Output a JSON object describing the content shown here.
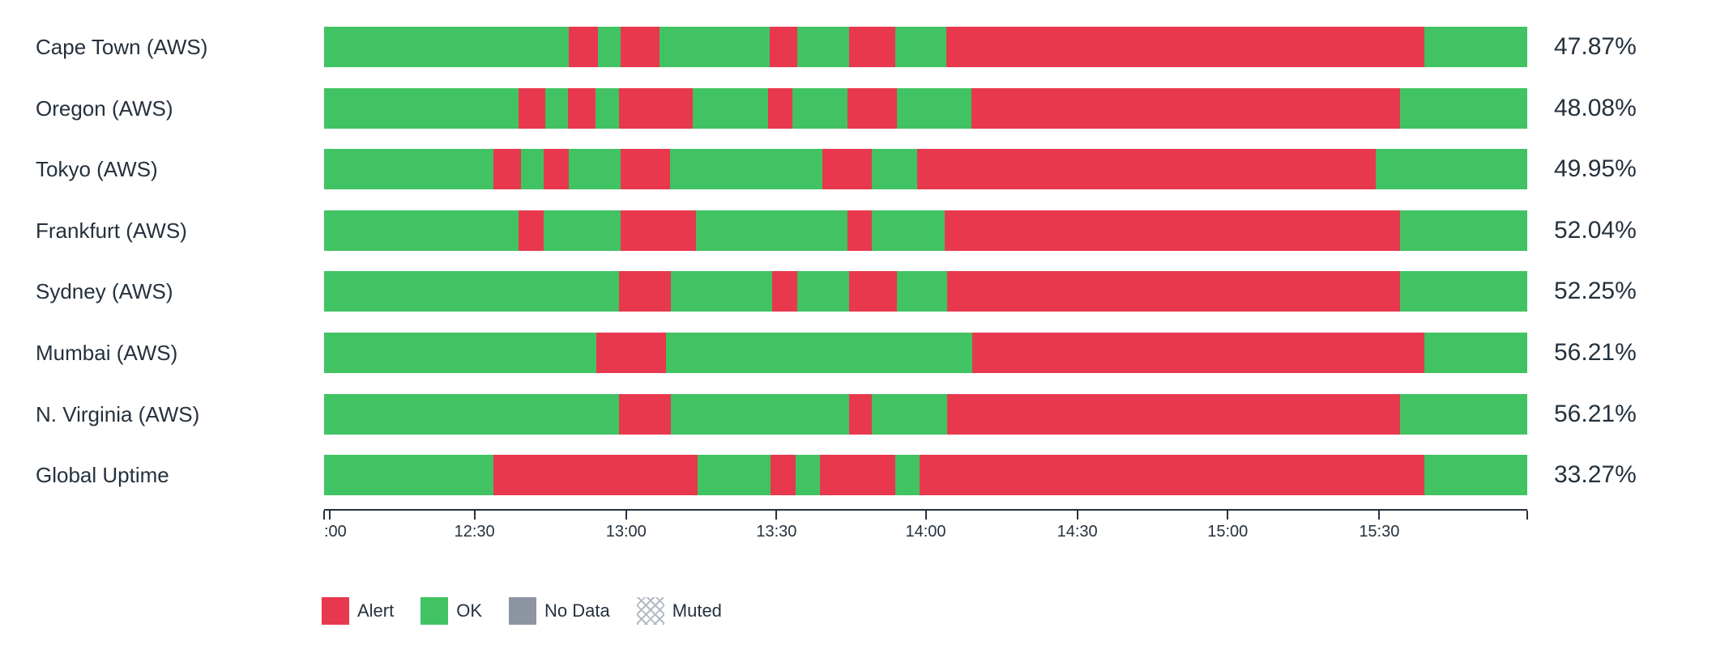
{
  "colors": {
    "alert": "#e8384e",
    "ok": "#41c363",
    "no_data": "#8d95a2",
    "muted_hatch": "#b3bac3",
    "text": "#25313d"
  },
  "chart_data": {
    "type": "bar",
    "variant": "status-timeline",
    "title": "",
    "xlabel": "",
    "ylabel": "",
    "grid": false,
    "legend_position": "bottom-left",
    "rows": [
      {
        "label": "Cape Town (AWS)",
        "value": "47.87%",
        "segments": [
          {
            "state": "ok",
            "width_pct": 20.35
          },
          {
            "state": "alert",
            "width_pct": 2.41
          },
          {
            "state": "ok",
            "width_pct": 1.88
          },
          {
            "state": "alert",
            "width_pct": 3.24
          },
          {
            "state": "ok",
            "width_pct": 9.19
          },
          {
            "state": "alert",
            "width_pct": 2.26
          },
          {
            "state": "ok",
            "width_pct": 4.29
          },
          {
            "state": "alert",
            "width_pct": 3.84
          },
          {
            "state": "ok",
            "width_pct": 4.29
          },
          {
            "state": "alert",
            "width_pct": 39.71
          },
          {
            "state": "ok",
            "width_pct": 8.54
          }
        ]
      },
      {
        "label": "Oregon (AWS)",
        "value": "48.08%",
        "segments": [
          {
            "state": "ok",
            "width_pct": 16.13
          },
          {
            "state": "alert",
            "width_pct": 2.26
          },
          {
            "state": "ok",
            "width_pct": 1.88
          },
          {
            "state": "alert",
            "width_pct": 2.26
          },
          {
            "state": "ok",
            "width_pct": 1.96
          },
          {
            "state": "alert",
            "width_pct": 6.18
          },
          {
            "state": "ok",
            "width_pct": 6.25
          },
          {
            "state": "alert",
            "width_pct": 2.03
          },
          {
            "state": "ok",
            "width_pct": 4.52
          },
          {
            "state": "alert",
            "width_pct": 4.14
          },
          {
            "state": "ok",
            "width_pct": 6.18
          },
          {
            "state": "alert",
            "width_pct": 35.64
          },
          {
            "state": "ok",
            "width_pct": 10.57
          }
        ]
      },
      {
        "label": "Tokyo (AWS)",
        "value": "49.95%",
        "segments": [
          {
            "state": "ok",
            "width_pct": 14.09
          },
          {
            "state": "alert",
            "width_pct": 2.26
          },
          {
            "state": "ok",
            "width_pct": 1.88
          },
          {
            "state": "alert",
            "width_pct": 2.11
          },
          {
            "state": "ok",
            "width_pct": 4.3
          },
          {
            "state": "alert",
            "width_pct": 4.14
          },
          {
            "state": "ok",
            "width_pct": 12.66
          },
          {
            "state": "alert",
            "width_pct": 4.07
          },
          {
            "state": "ok",
            "width_pct": 3.77
          },
          {
            "state": "alert",
            "width_pct": 38.13
          },
          {
            "state": "ok",
            "width_pct": 12.59
          }
        ]
      },
      {
        "label": "Frankfurt (AWS)",
        "value": "52.04%",
        "segments": [
          {
            "state": "ok",
            "width_pct": 16.13
          },
          {
            "state": "alert",
            "width_pct": 2.11
          },
          {
            "state": "ok",
            "width_pct": 6.41
          },
          {
            "state": "alert",
            "width_pct": 6.25
          },
          {
            "state": "ok",
            "width_pct": 12.58
          },
          {
            "state": "alert",
            "width_pct": 2.03
          },
          {
            "state": "ok",
            "width_pct": 6.1
          },
          {
            "state": "alert",
            "width_pct": 37.83
          },
          {
            "state": "ok",
            "width_pct": 10.56
          }
        ]
      },
      {
        "label": "Sydney (AWS)",
        "value": "52.25%",
        "segments": [
          {
            "state": "ok",
            "width_pct": 24.49
          },
          {
            "state": "alert",
            "width_pct": 4.3
          },
          {
            "state": "ok",
            "width_pct": 8.44
          },
          {
            "state": "alert",
            "width_pct": 2.11
          },
          {
            "state": "ok",
            "width_pct": 4.3
          },
          {
            "state": "alert",
            "width_pct": 3.99
          },
          {
            "state": "ok",
            "width_pct": 4.14
          },
          {
            "state": "alert",
            "width_pct": 37.68
          },
          {
            "state": "ok",
            "width_pct": 10.55
          }
        ]
      },
      {
        "label": "Mumbai (AWS)",
        "value": "56.21%",
        "segments": [
          {
            "state": "ok",
            "width_pct": 22.61
          },
          {
            "state": "alert",
            "width_pct": 5.8
          },
          {
            "state": "ok",
            "width_pct": 25.47
          },
          {
            "state": "alert",
            "width_pct": 37.6
          },
          {
            "state": "ok",
            "width_pct": 8.52
          }
        ]
      },
      {
        "label": "N. Virginia (AWS)",
        "value": "56.21%",
        "segments": [
          {
            "state": "ok",
            "width_pct": 24.49
          },
          {
            "state": "alert",
            "width_pct": 4.3
          },
          {
            "state": "ok",
            "width_pct": 14.84
          },
          {
            "state": "alert",
            "width_pct": 1.88
          },
          {
            "state": "ok",
            "width_pct": 6.25
          },
          {
            "state": "alert",
            "width_pct": 37.68
          },
          {
            "state": "ok",
            "width_pct": 10.56
          }
        ]
      },
      {
        "label": "Global Uptime",
        "value": "33.27%",
        "segments": [
          {
            "state": "ok",
            "width_pct": 14.09
          },
          {
            "state": "alert",
            "width_pct": 16.96
          },
          {
            "state": "ok",
            "width_pct": 6.03
          },
          {
            "state": "alert",
            "width_pct": 2.11
          },
          {
            "state": "ok",
            "width_pct": 2.03
          },
          {
            "state": "alert",
            "width_pct": 6.25
          },
          {
            "state": "ok",
            "width_pct": 2.03
          },
          {
            "state": "alert",
            "width_pct": 41.97
          },
          {
            "state": "ok",
            "width_pct": 8.53
          }
        ]
      }
    ],
    "axis": {
      "ticks": [
        {
          "label": ":00",
          "pos_pct": 0.45,
          "align": "left"
        },
        {
          "label": "12:30",
          "pos_pct": 12.5
        },
        {
          "label": "13:00",
          "pos_pct": 25.1
        },
        {
          "label": "13:30",
          "pos_pct": 37.6
        },
        {
          "label": "14:00",
          "pos_pct": 50.0
        },
        {
          "label": "14:30",
          "pos_pct": 62.6
        },
        {
          "label": "15:00",
          "pos_pct": 75.1
        },
        {
          "label": "15:30",
          "pos_pct": 87.7
        }
      ],
      "edge_marks_pct": [
        0,
        100
      ]
    },
    "legend": [
      {
        "label": "Alert",
        "swatch": "alert"
      },
      {
        "label": "OK",
        "swatch": "ok"
      },
      {
        "label": "No Data",
        "swatch": "no-data"
      },
      {
        "label": "Muted",
        "swatch": "muted"
      }
    ]
  }
}
